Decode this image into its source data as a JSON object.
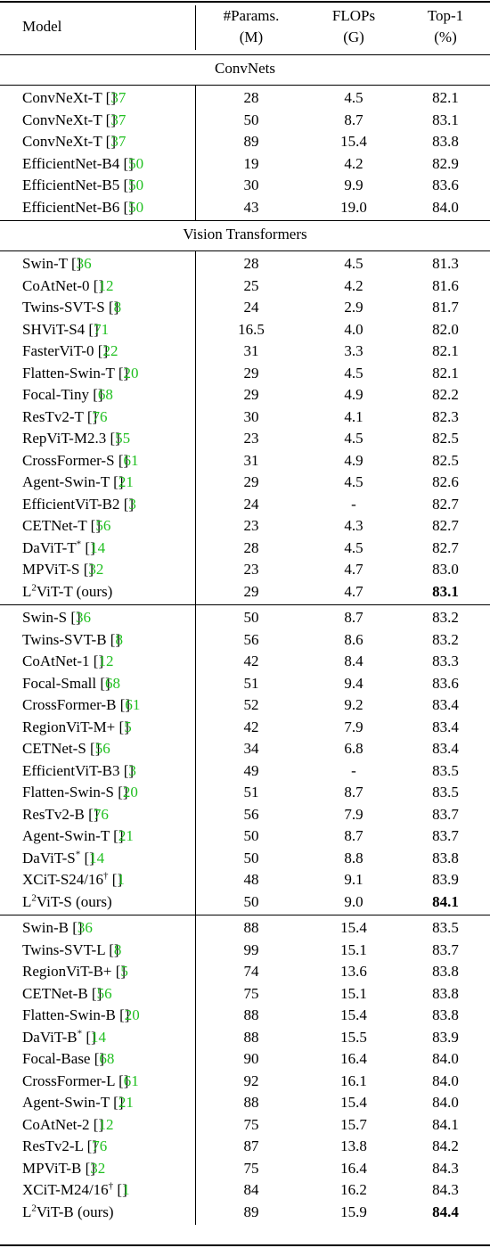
{
  "header": {
    "model": "Model",
    "params": [
      "#Params.",
      "(M)"
    ],
    "flops": [
      "FLOPs",
      "(G)"
    ],
    "top1": [
      "Top-1",
      "(%)"
    ]
  },
  "sections": [
    {
      "title": "ConvNets",
      "groups": [
        [
          {
            "name": "ConvNeXt-T",
            "ref": "37",
            "params": "28",
            "flops": "4.5",
            "top1": "82.1"
          },
          {
            "name": "ConvNeXt-T",
            "ref": "37",
            "params": "50",
            "flops": "8.7",
            "top1": "83.1"
          },
          {
            "name": "ConvNeXt-T",
            "ref": "37",
            "params": "89",
            "flops": "15.4",
            "top1": "83.8"
          },
          {
            "name": "EfficientNet-B4",
            "ref": "50",
            "params": "19",
            "flops": "4.2",
            "top1": "82.9"
          },
          {
            "name": "EfficientNet-B5",
            "ref": "50",
            "params": "30",
            "flops": "9.9",
            "top1": "83.6"
          },
          {
            "name": "EfficientNet-B6",
            "ref": "50",
            "params": "43",
            "flops": "19.0",
            "top1": "84.0"
          }
        ]
      ]
    },
    {
      "title": "Vision Transformers",
      "groups": [
        [
          {
            "name": "Swin-T",
            "ref": "36",
            "params": "28",
            "flops": "4.5",
            "top1": "81.3"
          },
          {
            "name": "CoAtNet-0",
            "ref": "12",
            "params": "25",
            "flops": "4.2",
            "top1": "81.6"
          },
          {
            "name": "Twins-SVT-S",
            "ref": "8",
            "params": "24",
            "flops": "2.9",
            "top1": "81.7"
          },
          {
            "name": "SHViT-S4",
            "ref": "71",
            "params": "16.5",
            "flops": "4.0",
            "top1": "82.0"
          },
          {
            "name": "FasterViT-0",
            "ref": "22",
            "params": "31",
            "flops": "3.3",
            "top1": "82.1"
          },
          {
            "name": "Flatten-Swin-T",
            "ref": "20",
            "params": "29",
            "flops": "4.5",
            "top1": "82.1"
          },
          {
            "name": "Focal-Tiny",
            "ref": "68",
            "params": "29",
            "flops": "4.9",
            "top1": "82.2"
          },
          {
            "name": "ResTv2-T",
            "ref": "76",
            "params": "30",
            "flops": "4.1",
            "top1": "82.3"
          },
          {
            "name": "RepViT-M2.3",
            "ref": "55",
            "params": "23",
            "flops": "4.5",
            "top1": "82.5"
          },
          {
            "name": "CrossFormer-S",
            "ref": "61",
            "params": "31",
            "flops": "4.9",
            "top1": "82.5"
          },
          {
            "name": "Agent-Swin-T",
            "ref": "21",
            "params": "29",
            "flops": "4.5",
            "top1": "82.6"
          },
          {
            "name": "EfficientViT-B2",
            "ref": "3",
            "params": "24",
            "flops": "-",
            "top1": "82.7"
          },
          {
            "name": "CETNet-T",
            "ref": "56",
            "params": "23",
            "flops": "4.3",
            "top1": "82.7"
          },
          {
            "name": "DaViT-T",
            "sup": "*",
            "ref": "14",
            "params": "28",
            "flops": "4.5",
            "top1": "82.7"
          },
          {
            "name": "MPViT-S",
            "ref": "32",
            "params": "23",
            "flops": "4.7",
            "top1": "83.0"
          },
          {
            "pre": "L",
            "presup": "2",
            "name": "ViT-T (ours)",
            "params": "29",
            "flops": "4.7",
            "top1": "83.1",
            "best": true
          }
        ],
        [
          {
            "name": "Swin-S",
            "ref": "36",
            "params": "50",
            "flops": "8.7",
            "top1": "83.2"
          },
          {
            "name": "Twins-SVT-B",
            "ref": "8",
            "params": "56",
            "flops": "8.6",
            "top1": "83.2"
          },
          {
            "name": "CoAtNet-1",
            "ref": "12",
            "params": "42",
            "flops": "8.4",
            "top1": "83.3"
          },
          {
            "name": "Focal-Small",
            "ref": "68",
            "params": "51",
            "flops": "9.4",
            "top1": "83.6"
          },
          {
            "name": "CrossFormer-B",
            "ref": "61",
            "params": "52",
            "flops": "9.2",
            "top1": "83.4"
          },
          {
            "name": "RegionViT-M+",
            "ref": "5",
            "params": "42",
            "flops": "7.9",
            "top1": "83.4"
          },
          {
            "name": "CETNet-S",
            "ref": "56",
            "params": "34",
            "flops": "6.8",
            "top1": "83.4"
          },
          {
            "name": "EfficientViT-B3",
            "ref": "3",
            "params": "49",
            "flops": "-",
            "top1": "83.5"
          },
          {
            "name": "Flatten-Swin-S",
            "ref": "20",
            "params": "51",
            "flops": "8.7",
            "top1": "83.5"
          },
          {
            "name": "ResTv2-B",
            "ref": "76",
            "params": "56",
            "flops": "7.9",
            "top1": "83.7"
          },
          {
            "name": "Agent-Swin-T",
            "ref": "21",
            "params": "50",
            "flops": "8.7",
            "top1": "83.7"
          },
          {
            "name": "DaViT-S",
            "sup": "*",
            "ref": "14",
            "params": "50",
            "flops": "8.8",
            "top1": "83.8"
          },
          {
            "name": "XCiT-S24/16",
            "sup": "†",
            "ref": "1",
            "params": "48",
            "flops": "9.1",
            "top1": "83.9"
          },
          {
            "pre": "L",
            "presup": "2",
            "name": "ViT-S (ours)",
            "params": "50",
            "flops": "9.0",
            "top1": "84.1",
            "best": true
          }
        ],
        [
          {
            "name": "Swin-B",
            "ref": "36",
            "params": "88",
            "flops": "15.4",
            "top1": "83.5"
          },
          {
            "name": "Twins-SVT-L",
            "ref": "8",
            "params": "99",
            "flops": "15.1",
            "top1": "83.7"
          },
          {
            "name": "RegionViT-B+",
            "ref": "5",
            "params": "74",
            "flops": "13.6",
            "top1": "83.8"
          },
          {
            "name": "CETNet-B",
            "ref": "56",
            "params": "75",
            "flops": "15.1",
            "top1": "83.8"
          },
          {
            "name": "Flatten-Swin-B",
            "ref": "20",
            "params": "88",
            "flops": "15.4",
            "top1": "83.8"
          },
          {
            "name": "DaViT-B",
            "sup": "*",
            "ref": "14",
            "params": "88",
            "flops": "15.5",
            "top1": "83.9"
          },
          {
            "name": "Focal-Base",
            "ref": "68",
            "params": "90",
            "flops": "16.4",
            "top1": "84.0"
          },
          {
            "name": "CrossFormer-L",
            "ref": "61",
            "params": "92",
            "flops": "16.1",
            "top1": "84.0"
          },
          {
            "name": "Agent-Swin-T",
            "ref": "21",
            "params": "88",
            "flops": "15.4",
            "top1": "84.0"
          },
          {
            "name": "CoAtNet-2",
            "ref": "12",
            "params": "75",
            "flops": "15.7",
            "top1": "84.1"
          },
          {
            "name": "ResTv2-L",
            "ref": "76",
            "params": "87",
            "flops": "13.8",
            "top1": "84.2"
          },
          {
            "name": "MPViT-B",
            "ref": "32",
            "params": "75",
            "flops": "16.4",
            "top1": "84.3"
          },
          {
            "name": "XCiT-M24/16",
            "sup": "†",
            "ref": "1",
            "params": "84",
            "flops": "16.2",
            "top1": "84.3"
          },
          {
            "pre": "L",
            "presup": "2",
            "name": "ViT-B (ours)",
            "params": "89",
            "flops": "15.9",
            "top1": "84.4",
            "best": true
          }
        ]
      ]
    }
  ]
}
